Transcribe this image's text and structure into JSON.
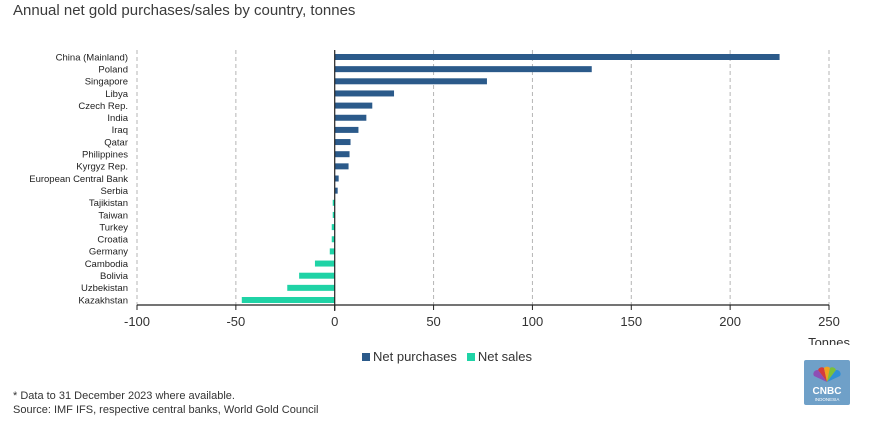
{
  "title": "Annual net gold purchases/sales by country, tonnes",
  "footnote": "* Data to 31 December 2023 where available.",
  "source": "Source: IMF IFS, respective central banks, World Gold Council",
  "colors": {
    "purchases": "#2b5a8a",
    "sales": "#1fd3a6",
    "grid": "#b5b5b5",
    "axis": "#222222"
  },
  "logo": {
    "text": "CNBC",
    "subtext": "INDONESIA",
    "icon": "peacock-logo-icon"
  },
  "chart_data": {
    "type": "bar",
    "orientation": "horizontal",
    "categories": [
      "China (Mainland)",
      "Poland",
      "Singapore",
      "Libya",
      "Czech Rep.",
      "India",
      "Iraq",
      "Qatar",
      "Philippines",
      "Kyrgyz Rep.",
      "European Central Bank",
      "Serbia",
      "Tajikistan",
      "Taiwan",
      "Turkey",
      "Croatia",
      "Germany",
      "Cambodia",
      "Bolivia",
      "Uzbekistan",
      "Kazakhstan"
    ],
    "values": [
      225,
      130,
      77,
      30,
      19,
      16,
      12,
      8,
      7.5,
      7,
      2,
      1.5,
      -1,
      -1,
      -1.5,
      -1.5,
      -2.5,
      -10,
      -18,
      -24,
      -47
    ],
    "series": [
      {
        "name": "Net purchases",
        "color": "#2b5a8a"
      },
      {
        "name": "Net sales",
        "color": "#1fd3a6"
      }
    ],
    "xlabel": "Tonnes",
    "xlim": [
      -100,
      250
    ],
    "xticks": [
      -100,
      -50,
      0,
      50,
      100,
      150,
      200,
      250
    ],
    "grid": "vertical dashed",
    "legend": "bottom"
  }
}
